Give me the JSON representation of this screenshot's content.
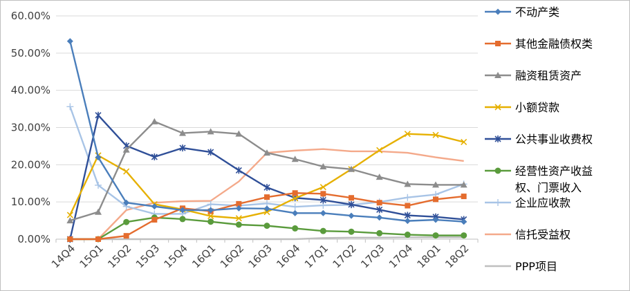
{
  "chart_data": {
    "type": "line",
    "title": "",
    "xlabel": "",
    "ylabel": "",
    "ylim": [
      0,
      60
    ],
    "y_tick_labels": [
      "0.00%",
      "10.00%",
      "20.00%",
      "30.00%",
      "40.00%",
      "50.00%",
      "60.00%"
    ],
    "categories": [
      "14Q4",
      "15Q1",
      "15Q2",
      "15Q3",
      "15Q4",
      "16Q1",
      "16Q2",
      "16Q3",
      "16Q4",
      "17Q1",
      "17Q2",
      "17Q3",
      "17Q4",
      "18Q1",
      "18Q2"
    ],
    "grid": "horizontal",
    "legend_position": "right",
    "series": [
      {
        "name": "不动产类",
        "color": "#4a7ebb",
        "marker": "diamond",
        "values": [
          53.2,
          22.0,
          9.8,
          8.8,
          7.8,
          7.8,
          8.3,
          8.2,
          7.0,
          7.0,
          6.3,
          5.8,
          4.9,
          5.2,
          4.7
        ]
      },
      {
        "name": "其他金融债权类",
        "color": "#e46c2e",
        "marker": "square",
        "values": [
          0.0,
          0.0,
          0.9,
          5.2,
          8.3,
          7.5,
          9.5,
          11.3,
          12.4,
          12.2,
          11.1,
          9.8,
          9.0,
          10.7,
          11.5
        ]
      },
      {
        "name": "融资租赁资产",
        "color": "#8c8c8c",
        "marker": "triangle",
        "values": [
          5.0,
          7.3,
          24.0,
          31.6,
          28.5,
          28.9,
          28.3,
          23.2,
          21.5,
          19.5,
          18.8,
          16.7,
          14.8,
          14.6,
          14.6
        ]
      },
      {
        "name": "小额贷款",
        "color": "#e6b000",
        "marker": "x",
        "values": [
          6.5,
          22.5,
          18.2,
          9.4,
          8.0,
          6.2,
          5.6,
          7.3,
          11.0,
          14.0,
          18.8,
          23.9,
          28.3,
          28.0,
          26.1
        ]
      },
      {
        "name": "公共事业收费权",
        "color": "#2f4f98",
        "marker": "star",
        "values": [
          0.0,
          33.3,
          25.1,
          22.1,
          24.5,
          23.4,
          18.5,
          13.9,
          11.1,
          10.5,
          9.3,
          7.9,
          6.4,
          6.0,
          5.3
        ]
      },
      {
        "name": "经营性资产收益权、门票收入",
        "color": "#5a9b3c",
        "marker": "circle",
        "values": [
          0.0,
          0.0,
          4.6,
          5.8,
          5.4,
          4.7,
          3.9,
          3.6,
          2.9,
          2.2,
          2.0,
          1.6,
          1.2,
          1.0,
          1.0
        ]
      },
      {
        "name": "企业应收款",
        "color": "#a8c4e6",
        "marker": "plus",
        "values": [
          35.6,
          14.5,
          8.8,
          6.8,
          6.8,
          9.4,
          9.0,
          9.6,
          8.7,
          9.1,
          9.2,
          10.0,
          11.2,
          12.0,
          14.8
        ]
      },
      {
        "name": "信托受益权",
        "color": "#f4a98a",
        "marker": "none",
        "values": [
          0.0,
          0.0,
          7.8,
          9.8,
          10.2,
          10.3,
          15.5,
          23.2,
          23.8,
          24.2,
          23.6,
          23.6,
          23.2,
          22.0,
          21.0
        ]
      },
      {
        "name": "PPP项目",
        "color": "#bfbfbf",
        "marker": "none",
        "values": [
          0.0,
          0.0,
          0.0,
          0.0,
          0.0,
          0.0,
          0.0,
          0.0,
          0.0,
          0.3,
          0.4,
          0.4,
          0.5,
          0.5,
          0.5
        ]
      }
    ]
  }
}
